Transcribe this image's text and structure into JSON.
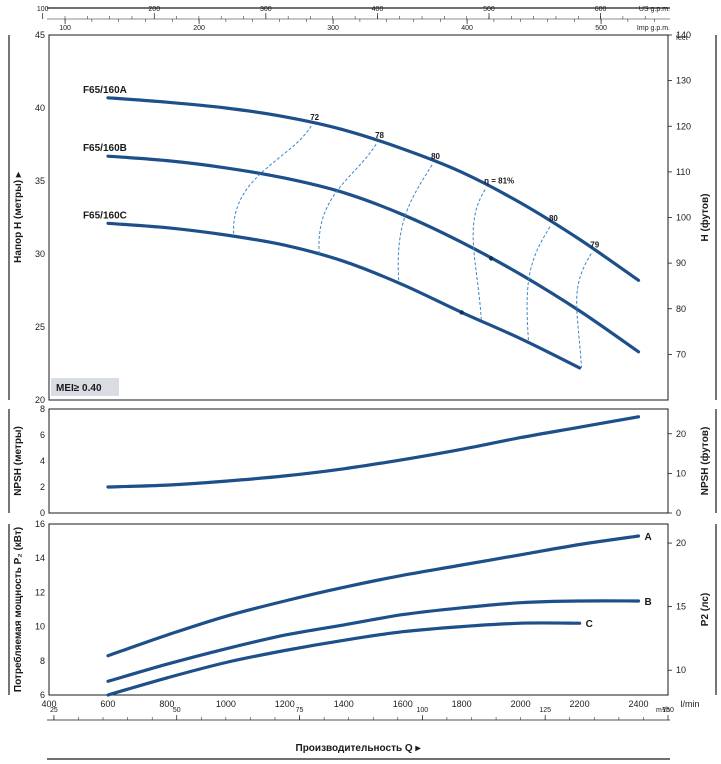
{
  "chart_data": [
    {
      "type": "line",
      "ylabel": "Напор H (метры) ▸",
      "y2label": "H (футов)",
      "y2unit": "feet",
      "ylim": [
        20,
        45
      ],
      "yticks": [
        20,
        25,
        30,
        35,
        40,
        45
      ],
      "y2ticks": [
        70,
        80,
        90,
        100,
        110,
        120,
        130,
        140
      ],
      "series": [
        {
          "name": "F65/160A",
          "x": [
            600,
            800,
            1000,
            1200,
            1400,
            1600,
            1800,
            2000,
            2200,
            2400
          ],
          "values": [
            40.7,
            40.4,
            40.0,
            39.4,
            38.5,
            37.2,
            35.6,
            33.5,
            31.0,
            28.2
          ]
        },
        {
          "name": "F65/160B",
          "x": [
            600,
            800,
            1000,
            1200,
            1400,
            1600,
            1800,
            2000,
            2200,
            2400
          ],
          "values": [
            36.7,
            36.4,
            35.9,
            35.2,
            34.2,
            32.7,
            30.8,
            28.6,
            26.1,
            23.3
          ]
        },
        {
          "name": "F65/160C",
          "x": [
            600,
            800,
            1000,
            1200,
            1400,
            1600,
            1800,
            2000,
            2200
          ],
          "values": [
            32.1,
            31.8,
            31.3,
            30.6,
            29.5,
            27.9,
            26.0,
            24.2,
            22.2
          ]
        }
      ],
      "efficiency_labels": [
        "72",
        "78",
        "80",
        "η = 81%",
        "80",
        "79"
      ],
      "badge": "MEI≥ 0.40"
    },
    {
      "type": "line",
      "ylabel": "NPSH (метры)",
      "y2label": "NPSH (футов)",
      "ylim": [
        0,
        8
      ],
      "yticks": [
        0,
        2,
        4,
        6,
        8
      ],
      "y2ticks": [
        0,
        10,
        20
      ],
      "series": [
        {
          "name": "",
          "x": [
            600,
            800,
            1000,
            1200,
            1400,
            1600,
            1800,
            2000,
            2200,
            2400
          ],
          "values": [
            2.0,
            2.15,
            2.45,
            2.85,
            3.4,
            4.1,
            4.9,
            5.8,
            6.6,
            7.4
          ]
        }
      ]
    },
    {
      "type": "line",
      "ylabel": "Потребляемая мощность P₂ (кВт)",
      "y2label": "P2 (лс)",
      "ylim": [
        6,
        16
      ],
      "yticks": [
        6,
        8,
        10,
        12,
        14,
        16
      ],
      "y2ticks": [
        10,
        15,
        20
      ],
      "series": [
        {
          "name": "A",
          "x": [
            600,
            800,
            1000,
            1200,
            1400,
            1600,
            1800,
            2000,
            2200,
            2400
          ],
          "values": [
            8.3,
            9.5,
            10.6,
            11.5,
            12.3,
            13.0,
            13.6,
            14.2,
            14.8,
            15.3
          ]
        },
        {
          "name": "B",
          "x": [
            600,
            800,
            1000,
            1200,
            1400,
            1600,
            1800,
            2000,
            2200,
            2400
          ],
          "values": [
            6.8,
            7.8,
            8.7,
            9.5,
            10.1,
            10.7,
            11.1,
            11.4,
            11.5,
            11.5
          ]
        },
        {
          "name": "C",
          "x": [
            600,
            800,
            1000,
            1200,
            1400,
            1600,
            1800,
            2000,
            2200
          ],
          "values": [
            6.0,
            7.0,
            7.9,
            8.6,
            9.2,
            9.7,
            10.0,
            10.2,
            10.2
          ]
        }
      ]
    }
  ],
  "x_axis": {
    "unit": "l/min",
    "ticks": [
      400,
      600,
      800,
      1000,
      1200,
      1400,
      1600,
      1800,
      2000,
      2200,
      2400
    ],
    "m3h_unit": "m³/h",
    "m3h_ticks": [
      25,
      50,
      75,
      100,
      125,
      150
    ],
    "usgpm_unit": "US g.p.m.",
    "usgpm_ticks": [
      100,
      200,
      300,
      400,
      500,
      600
    ],
    "impgpm_unit": "Imp g.p.m.",
    "impgpm_ticks": [
      100,
      200,
      300,
      400,
      500
    ],
    "title": "Производительность Q ▸"
  }
}
